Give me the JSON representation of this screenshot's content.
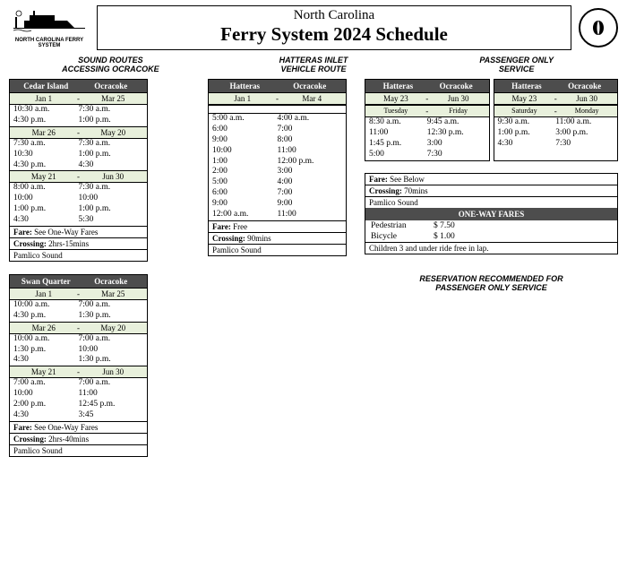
{
  "header": {
    "logo_caption": "NORTH CAROLINA FERRY SYSTEM",
    "title_line1": "North Carolina",
    "title_line2": "Ferry System 2024 Schedule"
  },
  "sections": {
    "left_l1": "SOUND ROUTES",
    "left_l2": "ACCESSING OCRACOKE",
    "mid_l1": "HATTERAS INLET",
    "mid_l2": "VEHICLE ROUTE",
    "right_l1": "PASSENGER ONLY",
    "right_l2": "SERVICE"
  },
  "cedar": {
    "h1": "Cedar Island",
    "h2": "Ocracoke",
    "p1_from": "Jan 1",
    "p1_to": "Mar 25",
    "p1_rows": [
      [
        "10:30 a.m.",
        "7:30 a.m."
      ],
      [
        "4:30 p.m.",
        "1:00 p.m."
      ]
    ],
    "p2_from": "Mar 26",
    "p2_to": "May 20",
    "p2_rows": [
      [
        "7:30 a.m.",
        "7:30 a.m."
      ],
      [
        "10:30",
        "1:00 p.m."
      ],
      [
        "4:30 p.m.",
        "4:30"
      ]
    ],
    "p3_from": "May 21",
    "p3_to": "Jun 30",
    "p3_rows": [
      [
        "8:00 a.m.",
        "7:30 a.m."
      ],
      [
        "10:00",
        "10:00"
      ],
      [
        "1:00 p.m.",
        "1:00 p.m."
      ],
      [
        "4:30",
        "5:30"
      ]
    ],
    "fare": "See One-Way Fares",
    "crossing": "2hrs-15mins",
    "sound": "Pamlico Sound"
  },
  "swan": {
    "h1": "Swan Quarter",
    "h2": "Ocracoke",
    "p1_from": "Jan 1",
    "p1_to": "Mar 25",
    "p1_rows": [
      [
        "10:00 a.m.",
        "7:00 a.m."
      ],
      [
        "4:30 p.m.",
        "1:30 p.m."
      ]
    ],
    "p2_from": "Mar 26",
    "p2_to": "May 20",
    "p2_rows": [
      [
        "10:00 a.m.",
        "7:00 a.m."
      ],
      [
        "1:30 p.m.",
        "10:00"
      ],
      [
        "4:30",
        "1:30 p.m."
      ]
    ],
    "p3_from": "May 21",
    "p3_to": "Jun 30",
    "p3_rows": [
      [
        "7:00 a.m.",
        "7:00 a.m."
      ],
      [
        "10:00",
        "11:00"
      ],
      [
        "2:00 p.m.",
        "12:45 p.m."
      ],
      [
        "4:30",
        "3:45"
      ]
    ],
    "fare": "See One-Way Fares",
    "crossing": "2hrs-40mins",
    "sound": "Pamlico Sound"
  },
  "hatteras": {
    "h1": "Hatteras",
    "h2": "Ocracoke",
    "p1_from": "Jan 1",
    "p1_to": "Mar 4",
    "p1_rows": [
      [
        "5:00 a.m.",
        "4:00 a.m."
      ],
      [
        "6:00",
        "7:00"
      ],
      [
        "9:00",
        "8:00"
      ],
      [
        "10:00",
        "11:00"
      ],
      [
        "1:00",
        "12:00 p.m."
      ],
      [
        "2:00",
        "3:00"
      ],
      [
        "5:00",
        "4:00"
      ],
      [
        "6:00",
        "7:00"
      ],
      [
        "9:00",
        "9:00"
      ],
      [
        "12:00 a.m.",
        "11:00"
      ]
    ],
    "fare": "Free",
    "crossing": "90mins",
    "sound": "Pamlico Sound"
  },
  "passenger": {
    "a": {
      "h1": "Hatteras",
      "h2": "Ocracoke",
      "from": "May 23",
      "to": "Jun 30",
      "sub_from": "Tuesday",
      "sub_to": "Friday",
      "rows": [
        [
          "8:30 a.m.",
          "9:45 a.m."
        ],
        [
          "11:00",
          "12:30 p.m."
        ],
        [
          "1:45 p.m.",
          "3:00"
        ],
        [
          "5:00",
          "7:30"
        ]
      ]
    },
    "b": {
      "h1": "Hatteras",
      "h2": "Ocracoke",
      "from": "May 23",
      "to": "Jun 30",
      "sub_from": "Saturday",
      "sub_to": "Monday",
      "rows": [
        [
          "9:30 a.m.",
          "11:00 a.m."
        ],
        [
          "1:00 p.m.",
          "3:00 p.m."
        ],
        [
          "4:30",
          "7:30"
        ],
        [
          "",
          ""
        ]
      ]
    },
    "fare": "See Below",
    "crossing": "70mins",
    "sound": "Pamlico Sound",
    "fares_head": "ONE-WAY FARES",
    "fare_ped_l": "Pedestrian",
    "fare_ped_v": "$ 7.50",
    "fare_bic_l": "Bicycle",
    "fare_bic_v": "$ 1.00",
    "fare_child": "Children 3 and under ride free in lap.",
    "note_l1": "RESERVATION RECOMMENDED FOR",
    "note_l2": "PASSENGER ONLY SERVICE"
  },
  "labels": {
    "fare": "Fare:",
    "crossing": "Crossing:"
  }
}
